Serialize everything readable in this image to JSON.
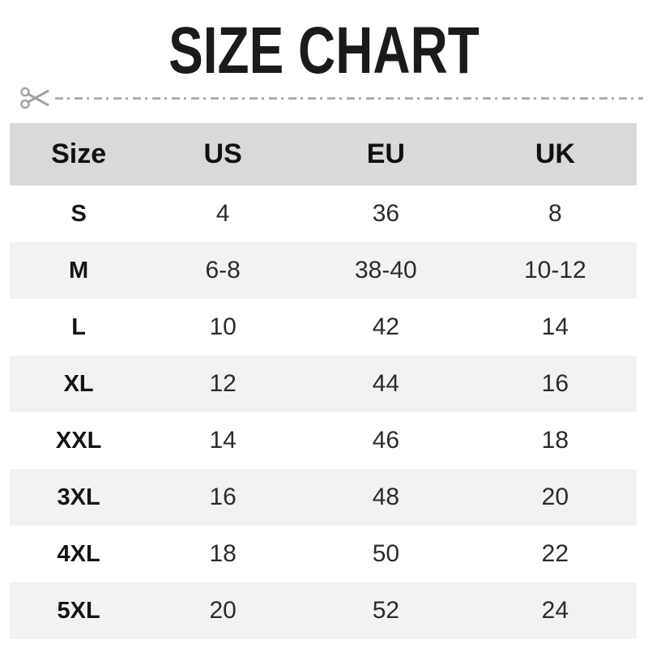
{
  "title": "SIZE CHART",
  "colors": {
    "header_bg": "#d9d9d9",
    "row_alt_bg": "#f2f2f2",
    "row_bg": "#ffffff",
    "title_text": "#1b1b1b",
    "body_text": "#2b2b2b",
    "dash_line": "#aeaeae",
    "scissors": "#a3a3a3"
  },
  "cut_line": {
    "icon": "scissors-icon"
  },
  "table": {
    "headers": [
      "Size",
      "US",
      "EU",
      "UK"
    ],
    "rows": [
      {
        "size": "S",
        "us": "4",
        "eu": "36",
        "uk": "8"
      },
      {
        "size": "M",
        "us": "6-8",
        "eu": "38-40",
        "uk": "10-12"
      },
      {
        "size": "L",
        "us": "10",
        "eu": "42",
        "uk": "14"
      },
      {
        "size": "XL",
        "us": "12",
        "eu": "44",
        "uk": "16"
      },
      {
        "size": "XXL",
        "us": "14",
        "eu": "46",
        "uk": "18"
      },
      {
        "size": "3XL",
        "us": "16",
        "eu": "48",
        "uk": "20"
      },
      {
        "size": "4XL",
        "us": "18",
        "eu": "50",
        "uk": "22"
      },
      {
        "size": "5XL",
        "us": "20",
        "eu": "52",
        "uk": "24"
      }
    ]
  },
  "chart_data": {
    "type": "table",
    "title": "SIZE CHART",
    "columns": [
      "Size",
      "US",
      "EU",
      "UK"
    ],
    "rows": [
      [
        "S",
        "4",
        "36",
        "8"
      ],
      [
        "M",
        "6-8",
        "38-40",
        "10-12"
      ],
      [
        "L",
        "10",
        "42",
        "14"
      ],
      [
        "XL",
        "12",
        "44",
        "16"
      ],
      [
        "XXL",
        "14",
        "46",
        "18"
      ],
      [
        "3XL",
        "16",
        "48",
        "20"
      ],
      [
        "4XL",
        "18",
        "50",
        "22"
      ],
      [
        "5XL",
        "20",
        "52",
        "24"
      ]
    ]
  }
}
